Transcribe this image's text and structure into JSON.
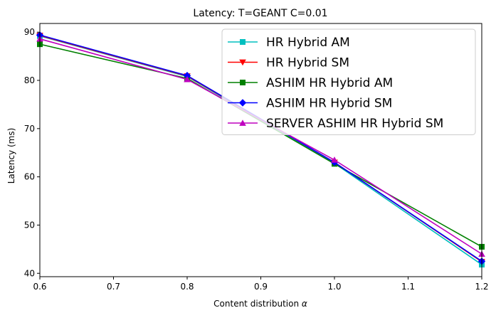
{
  "chart_data": {
    "type": "line",
    "title": "Latency: T=GEANT C=0.01",
    "xlabel": "Content distribution",
    "xlabel_symbol": "α",
    "ylabel": "Latency (ms)",
    "x": [
      0.6,
      0.8,
      1.0,
      1.2
    ],
    "xlim": [
      0.6,
      1.2
    ],
    "ylim": [
      39.3,
      91.8
    ],
    "xticks": [
      0.6,
      0.7,
      0.8,
      0.9,
      1.0,
      1.1,
      1.2
    ],
    "xtick_labels": [
      "0.6",
      "0.7",
      "0.8",
      "0.9",
      "1.0",
      "1.1",
      "1.2"
    ],
    "yticks": [
      40,
      50,
      60,
      70,
      80,
      90
    ],
    "ytick_labels": [
      "40",
      "50",
      "60",
      "70",
      "80",
      "90"
    ],
    "grid": false,
    "legend_position": "top-right",
    "series": [
      {
        "name": "HR Hybrid AM",
        "color": "#00bfbf",
        "marker": "square",
        "values": [
          89.2,
          80.8,
          62.8,
          41.8
        ]
      },
      {
        "name": "HR Hybrid SM",
        "color": "#ff0000",
        "marker": "triangle-down",
        "values": [
          89.3,
          80.9,
          63.0,
          42.4
        ]
      },
      {
        "name": "ASHIM HR Hybrid AM",
        "color": "#008000",
        "marker": "square",
        "values": [
          87.5,
          80.4,
          62.7,
          45.5
        ]
      },
      {
        "name": "ASHIM HR Hybrid SM",
        "color": "#0000ff",
        "marker": "diamond",
        "values": [
          89.4,
          81.0,
          63.0,
          42.5
        ]
      },
      {
        "name": "SERVER ASHIM HR Hybrid SM",
        "color": "#bf00bf",
        "marker": "triangle-up",
        "values": [
          88.6,
          80.2,
          63.5,
          44.0
        ]
      }
    ]
  }
}
